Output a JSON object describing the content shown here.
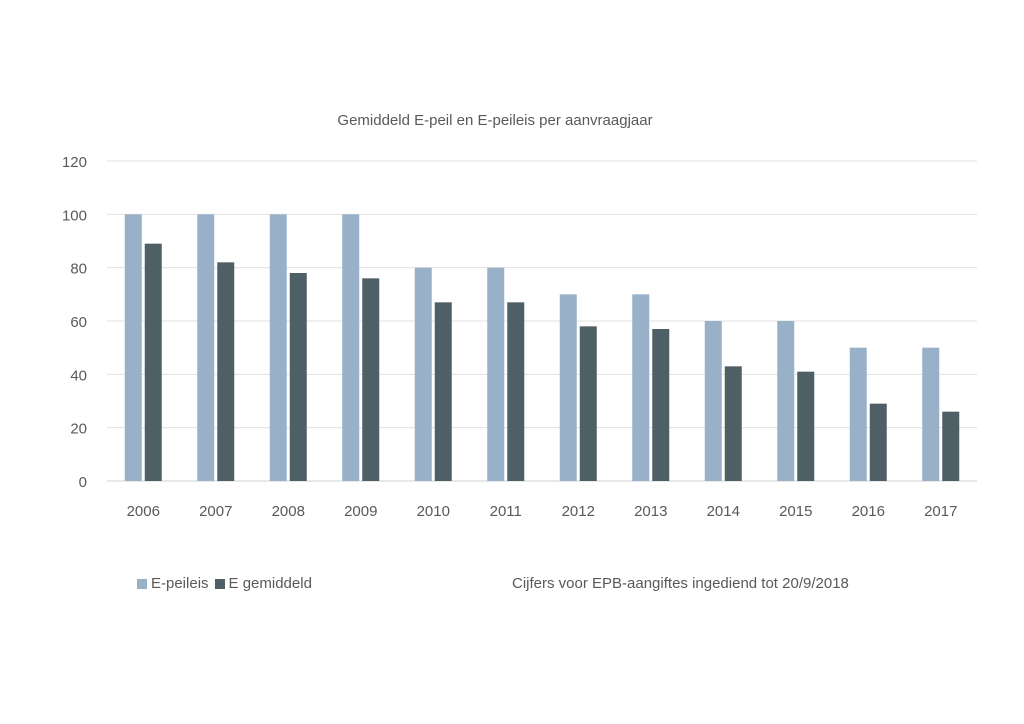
{
  "chart_data": {
    "type": "bar",
    "title": "Gemiddeld E-peil en E-peileis per aanvraagjaar",
    "categories": [
      "2006",
      "2007",
      "2008",
      "2009",
      "2010",
      "2011",
      "2012",
      "2013",
      "2014",
      "2015",
      "2016",
      "2017"
    ],
    "series": [
      {
        "name": "E-peileis",
        "color": "#98b1c8",
        "values": [
          100,
          100,
          100,
          100,
          80,
          80,
          70,
          70,
          60,
          60,
          50,
          50
        ]
      },
      {
        "name": "E gemiddeld",
        "color": "#4f5f66",
        "values": [
          89,
          82,
          78,
          76,
          67,
          67,
          58,
          57,
          43,
          41,
          29,
          26
        ]
      }
    ],
    "ylim": [
      0,
      120
    ],
    "yticks": [
      "0",
      "20",
      "40",
      "60",
      "80",
      "100",
      "120"
    ],
    "xlabel": "",
    "ylabel": "",
    "grid": true,
    "legend_position": "bottom-left",
    "note": "Cijfers voor EPB-aangiftes ingediend tot 20/9/2018"
  }
}
